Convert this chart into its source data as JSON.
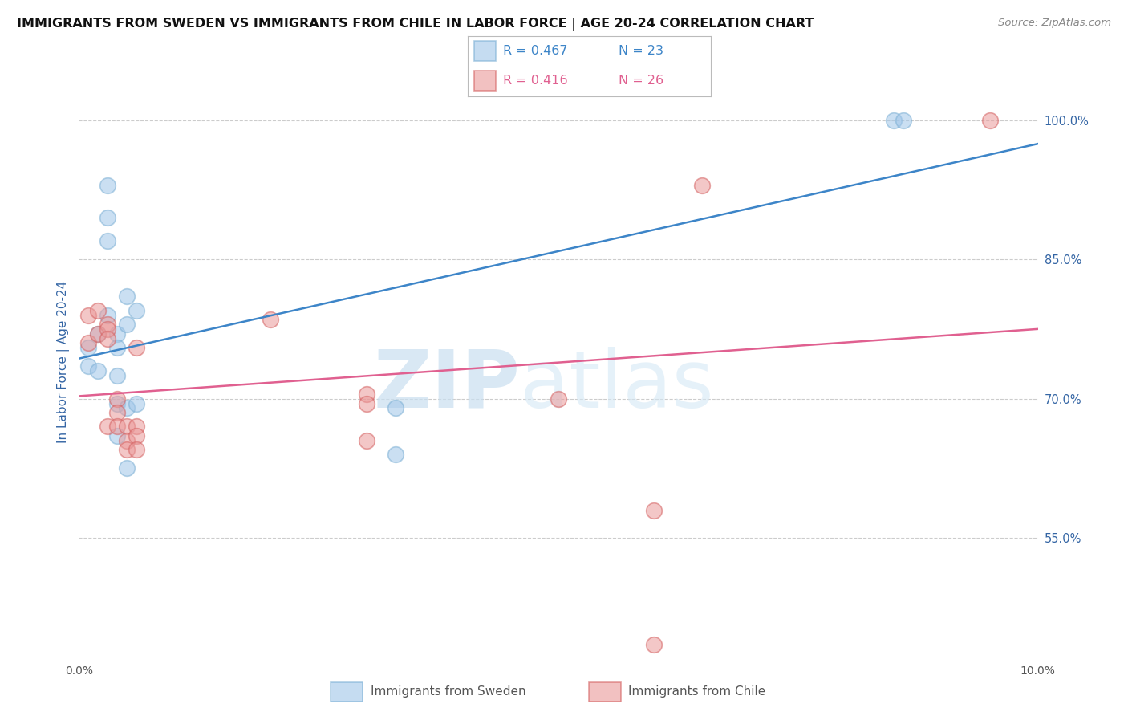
{
  "title": "IMMIGRANTS FROM SWEDEN VS IMMIGRANTS FROM CHILE IN LABOR FORCE | AGE 20-24 CORRELATION CHART",
  "source": "Source: ZipAtlas.com",
  "ylabel": "In Labor Force | Age 20-24",
  "ylabel_color": "#3465a4",
  "ytick_labels": [
    "100.0%",
    "85.0%",
    "70.0%",
    "55.0%"
  ],
  "ytick_values": [
    1.0,
    0.85,
    0.7,
    0.55
  ],
  "ytick_color": "#3465a4",
  "xlim": [
    0.0,
    0.1
  ],
  "ylim": [
    0.42,
    1.06
  ],
  "sweden_R": 0.467,
  "sweden_N": 23,
  "chile_R": 0.416,
  "chile_N": 26,
  "sweden_color": "#9fc5e8",
  "chile_color": "#ea9999",
  "sweden_line_color": "#3d85c8",
  "chile_line_color": "#e06090",
  "legend_label_sweden": "Immigrants from Sweden",
  "legend_label_chile": "Immigrants from Chile",
  "watermark_zip_color": "#c9dff0",
  "watermark_atlas_color": "#d5e8f5",
  "grid_color": "#cccccc",
  "background_color": "#ffffff",
  "title_fontsize": 11.5,
  "source_fontsize": 9.5,
  "legend_fontsize": 12,
  "axis_label_fontsize": 11,
  "sweden_x": [
    0.001,
    0.001,
    0.002,
    0.002,
    0.003,
    0.003,
    0.003,
    0.003,
    0.004,
    0.004,
    0.004,
    0.004,
    0.004,
    0.005,
    0.005,
    0.005,
    0.005,
    0.006,
    0.006,
    0.033,
    0.033,
    0.085,
    0.086
  ],
  "sweden_y": [
    0.755,
    0.735,
    0.73,
    0.77,
    0.93,
    0.895,
    0.87,
    0.79,
    0.77,
    0.755,
    0.725,
    0.695,
    0.66,
    0.81,
    0.78,
    0.69,
    0.625,
    0.795,
    0.695,
    0.69,
    0.64,
    1.0,
    1.0
  ],
  "chile_x": [
    0.001,
    0.001,
    0.002,
    0.002,
    0.003,
    0.003,
    0.003,
    0.003,
    0.004,
    0.004,
    0.004,
    0.005,
    0.005,
    0.005,
    0.006,
    0.006,
    0.006,
    0.006,
    0.02,
    0.03,
    0.03,
    0.03,
    0.05,
    0.06,
    0.065,
    0.095
  ],
  "chile_y": [
    0.79,
    0.76,
    0.795,
    0.77,
    0.78,
    0.775,
    0.67,
    0.765,
    0.7,
    0.685,
    0.67,
    0.67,
    0.655,
    0.645,
    0.755,
    0.67,
    0.66,
    0.645,
    0.785,
    0.705,
    0.695,
    0.655,
    0.7,
    0.58,
    0.93,
    1.0
  ],
  "scatter_size": 200,
  "scatter_alpha": 0.55,
  "line_width": 1.8,
  "marker_linewidth": 1.2,
  "point_outside_chile": [
    0.06,
    0.435
  ]
}
